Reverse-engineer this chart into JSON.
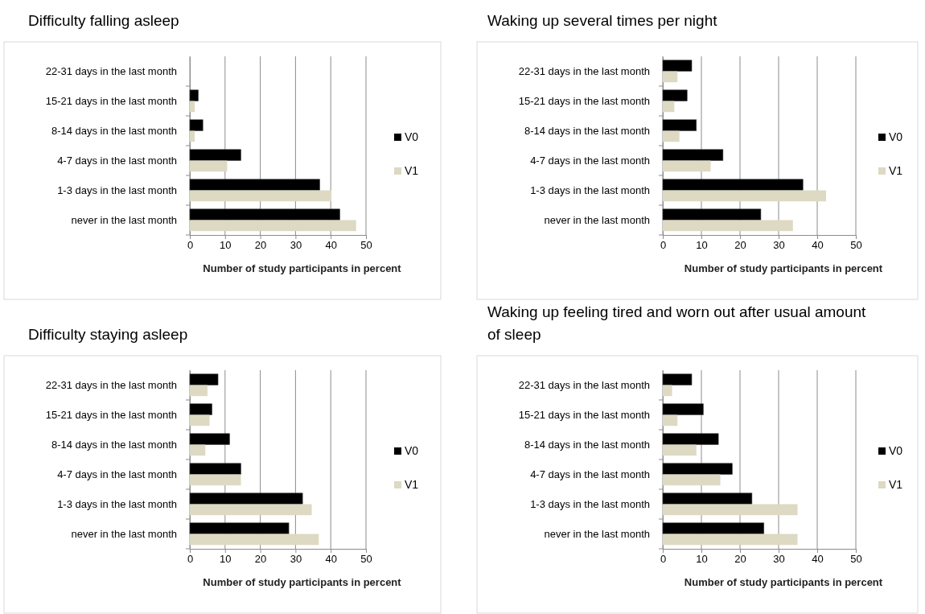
{
  "chart_data": [
    {
      "type": "bar",
      "orientation": "horizontal",
      "title": "Difficulty falling asleep",
      "xlabel": "Number of study participants in percent",
      "categories": [
        "22-31 days in the last month",
        "15-21 days in the last month",
        "8-14 days in the last month",
        "4-7 days in the last month",
        "1-3 days in the last month",
        "never in the last month"
      ],
      "xlim": [
        0,
        50
      ],
      "xticks": [
        0,
        10,
        20,
        30,
        40,
        50
      ],
      "grid": "x",
      "legend": "right",
      "series": [
        {
          "name": "V0",
          "color": "#000000",
          "values": [
            0,
            2.4,
            3.7,
            14.5,
            36.9,
            42.6
          ]
        },
        {
          "name": "V1",
          "color": "#ddd9c3",
          "values": [
            0,
            1.4,
            1.4,
            10.6,
            40.2,
            47.2
          ]
        }
      ]
    },
    {
      "type": "bar",
      "orientation": "horizontal",
      "title": "Waking up several times per night",
      "xlabel": "Number of study participants in percent",
      "categories": [
        "22-31 days in the last month",
        "15-21 days in the last month",
        "8-14 days in the last month",
        "4-7 days in the last month",
        "1-3 days in the last month",
        "never in the last month"
      ],
      "xlim": [
        0,
        50
      ],
      "xticks": [
        0,
        10,
        20,
        30,
        40,
        50
      ],
      "grid": "x",
      "legend": "right",
      "series": [
        {
          "name": "V0",
          "color": "#000000",
          "values": [
            7.5,
            6.3,
            8.7,
            15.6,
            36.3,
            25.4
          ]
        },
        {
          "name": "V1",
          "color": "#ddd9c3",
          "values": [
            3.8,
            3.0,
            4.3,
            12.4,
            42.3,
            33.7
          ]
        }
      ]
    },
    {
      "type": "bar",
      "orientation": "horizontal",
      "title": "Difficulty staying asleep",
      "xlabel": "Number of study participants in percent",
      "categories": [
        "22-31 days in the last month",
        "15-21 days in the last month",
        "8-14 days in the last month",
        "4-7 days in the last month",
        "1-3 days in the last month",
        "never in the last month"
      ],
      "xlim": [
        0,
        50
      ],
      "xticks": [
        0,
        10,
        20,
        30,
        40,
        50
      ],
      "grid": "x",
      "legend": "right",
      "series": [
        {
          "name": "V0",
          "color": "#000000",
          "values": [
            8.0,
            6.3,
            11.3,
            14.5,
            32.0,
            28.1
          ]
        },
        {
          "name": "V1",
          "color": "#ddd9c3",
          "values": [
            5.0,
            5.6,
            4.4,
            14.5,
            34.6,
            36.6
          ]
        }
      ]
    },
    {
      "type": "bar",
      "orientation": "horizontal",
      "title": "Waking up feeling tired and worn out after usual amount of sleep",
      "xlabel": "Number of study participants in percent",
      "categories": [
        "22-31 days in the last month",
        "15-21 days in the last month",
        "8-14 days in the last month",
        "4-7 days in the last month",
        "1-3 days in the last month",
        "never in the last month"
      ],
      "xlim": [
        0,
        50
      ],
      "xticks": [
        0,
        10,
        20,
        30,
        40,
        50
      ],
      "grid": "x",
      "legend": "right",
      "series": [
        {
          "name": "V0",
          "color": "#000000",
          "values": [
            7.5,
            10.5,
            14.4,
            18.0,
            23.1,
            26.2
          ]
        },
        {
          "name": "V1",
          "color": "#ddd9c3",
          "values": [
            2.4,
            3.8,
            8.7,
            14.9,
            34.9,
            34.9
          ]
        }
      ]
    }
  ]
}
